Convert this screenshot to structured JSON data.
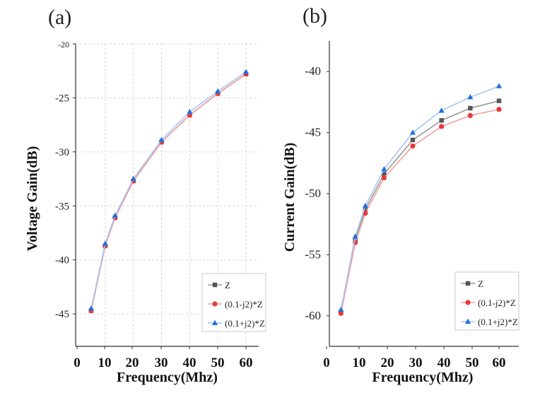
{
  "colors": {
    "z": "#555555",
    "minus": "#e8393a",
    "plus": "#1f6fe0",
    "line_z": "#9a9a9a",
    "line_minus": "#f2a0a0",
    "line_plus": "#a7c6f2",
    "grid": "#d6d6d6",
    "axis": "#333333"
  },
  "chart_data": [
    {
      "type": "line",
      "panel_label": "(a)",
      "xlabel": "Frequency(Mhz)",
      "ylabel": "Voltage Gain(dB)",
      "xlim": [
        0,
        65
      ],
      "ylim": [
        -48,
        -20
      ],
      "xticks": [
        0,
        10,
        20,
        30,
        40,
        50,
        60
      ],
      "yticks": [
        -45,
        -40,
        -35,
        -30,
        -25,
        -20
      ],
      "grid": true,
      "legend_position": "bottom-right",
      "x": [
        5,
        10,
        13.5,
        20,
        30,
        40,
        50,
        60
      ],
      "series": [
        {
          "name": "Z",
          "marker": "square",
          "values": [
            -44.7,
            -38.7,
            -36.1,
            -32.7,
            -29.1,
            -26.6,
            -24.6,
            -22.8
          ]
        },
        {
          "name": "(0.1-j2)*Z",
          "marker": "circle",
          "values": [
            -44.7,
            -38.7,
            -36.1,
            -32.7,
            -29.1,
            -26.6,
            -24.6,
            -22.8
          ]
        },
        {
          "name": "(0.1+j2)*Z",
          "marker": "triangle",
          "values": [
            -44.5,
            -38.5,
            -35.9,
            -32.5,
            -28.9,
            -26.3,
            -24.4,
            -22.6
          ]
        }
      ]
    },
    {
      "type": "line",
      "panel_label": "(b)",
      "xlabel": "Frequency(Mhz)",
      "ylabel": "Current Gain(dB)",
      "xlim": [
        0,
        65
      ],
      "ylim": [
        -62.5,
        -37.5
      ],
      "xticks": [
        0,
        10,
        20,
        30,
        40,
        50,
        60
      ],
      "yticks": [
        -60,
        -55,
        -50,
        -45,
        -40
      ],
      "grid": false,
      "legend_position": "bottom-right",
      "x": [
        5,
        10,
        13.5,
        20,
        30,
        40,
        50,
        60
      ],
      "series": [
        {
          "name": "Z",
          "marker": "square",
          "values": [
            -59.7,
            -53.8,
            -51.3,
            -48.4,
            -45.6,
            -44.0,
            -43.0,
            -42.4
          ]
        },
        {
          "name": "(0.1-j2)*Z",
          "marker": "circle",
          "values": [
            -59.8,
            -54.0,
            -51.6,
            -48.7,
            -46.1,
            -44.5,
            -43.6,
            -43.1
          ]
        },
        {
          "name": "(0.1+j2)*Z",
          "marker": "triangle",
          "values": [
            -59.5,
            -53.5,
            -51.0,
            -48.0,
            -45.0,
            -43.2,
            -42.1,
            -41.2
          ]
        }
      ]
    }
  ]
}
